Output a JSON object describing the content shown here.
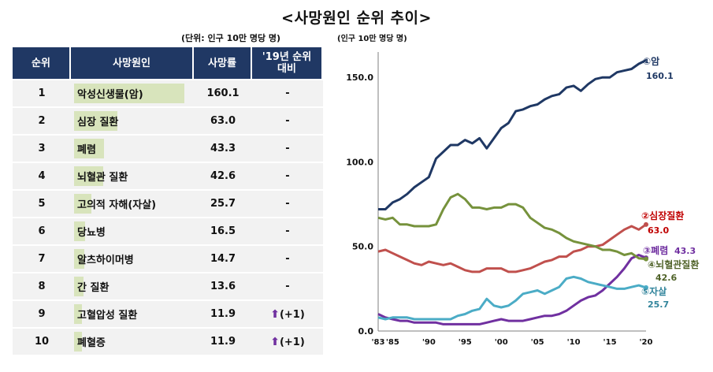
{
  "title": "<사망원인 순위 추이>",
  "table": {
    "unit": "(단위: 인구 10만 명당 명)",
    "headers": [
      "순위",
      "사망원인",
      "사망률",
      "'19년 순위\n대비"
    ],
    "rows": [
      {
        "rank": "1",
        "cause": "악성신생물(암)",
        "rate": "160.1",
        "value": 160.1,
        "change": "-"
      },
      {
        "rank": "2",
        "cause": "심장 질환",
        "rate": "63.0",
        "value": 63.0,
        "change": "-"
      },
      {
        "rank": "3",
        "cause": "폐렴",
        "rate": "43.3",
        "value": 43.3,
        "change": "-"
      },
      {
        "rank": "4",
        "cause": "뇌혈관 질환",
        "rate": "42.6",
        "value": 42.6,
        "change": "-"
      },
      {
        "rank": "5",
        "cause": "고의적 자해(자살)",
        "rate": "25.7",
        "value": 25.7,
        "change": "-"
      },
      {
        "rank": "6",
        "cause": "당뇨병",
        "rate": "16.5",
        "value": 16.5,
        "change": "-"
      },
      {
        "rank": "7",
        "cause": "알츠하이머병",
        "rate": "14.7",
        "value": 14.7,
        "change": "-"
      },
      {
        "rank": "8",
        "cause": "간 질환",
        "rate": "13.6",
        "value": 13.6,
        "change": "-"
      },
      {
        "rank": "9",
        "cause": "고혈압성 질환",
        "rate": "11.9",
        "value": 11.9,
        "change": "(+1)",
        "up": true
      },
      {
        "rank": "10",
        "cause": "폐혈증",
        "rate": "11.9",
        "value": 11.9,
        "change": "(+1)",
        "up": true
      }
    ],
    "bar_color": "#d8e4bc",
    "header_color": "#203864",
    "arrow_color": "#7030a0"
  },
  "chart_data": {
    "type": "line",
    "unit_label": "(인구 10만 명당 명)",
    "x": [
      1983,
      1984,
      1985,
      1986,
      1987,
      1988,
      1989,
      1990,
      1991,
      1992,
      1993,
      1994,
      1995,
      1996,
      1997,
      1998,
      1999,
      2000,
      2001,
      2002,
      2003,
      2004,
      2005,
      2006,
      2007,
      2008,
      2009,
      2010,
      2011,
      2012,
      2013,
      2014,
      2015,
      2016,
      2017,
      2018,
      2019,
      2020
    ],
    "x_ticks": [
      {
        "year": 1983,
        "label": "'83"
      },
      {
        "year": 1985,
        "label": "'85"
      },
      {
        "year": 1990,
        "label": "'90"
      },
      {
        "year": 1995,
        "label": "'95"
      },
      {
        "year": 2000,
        "label": "'00"
      },
      {
        "year": 2005,
        "label": "'05"
      },
      {
        "year": 2010,
        "label": "'10"
      },
      {
        "year": 2015,
        "label": "'15"
      },
      {
        "year": 2020,
        "label": "'20"
      }
    ],
    "y_ticks": [
      0,
      50,
      100,
      150
    ],
    "y_tick_labels": [
      "0.0",
      "50.0",
      "100.0",
      "150.0"
    ],
    "ylim": [
      0,
      165
    ],
    "grid": false,
    "series": [
      {
        "name": "①암",
        "end_label": "160.1",
        "color": "#1f3864",
        "label_color": "#1f3864",
        "values": [
          72,
          72,
          76,
          78,
          81,
          85,
          88,
          91,
          102,
          106,
          110,
          110,
          113,
          111,
          114,
          108,
          114,
          120,
          123,
          130,
          131,
          133,
          134,
          137,
          139,
          140,
          144,
          145,
          142,
          146,
          149,
          150,
          150,
          153,
          154,
          155,
          158,
          160.1
        ]
      },
      {
        "name": "②심장질환",
        "end_label": "63.0",
        "color": "#c0504d",
        "label_color": "#c00000",
        "values": [
          47,
          48,
          46,
          44,
          42,
          40,
          39,
          41,
          40,
          39,
          40,
          38,
          36,
          35,
          35,
          37,
          37,
          37,
          35,
          35,
          36,
          37,
          39,
          41,
          42,
          44,
          44,
          47,
          48,
          50,
          50,
          51,
          54,
          57,
          60,
          62,
          60,
          63.0
        ]
      },
      {
        "name": "③폐렴",
        "end_label": "43.3",
        "color": "#7030a0",
        "label_color": "#7030a0",
        "values": [
          10,
          8,
          7,
          6,
          6,
          5,
          5,
          5,
          5,
          4,
          4,
          4,
          4,
          4,
          4,
          5,
          6,
          7,
          6,
          6,
          6,
          7,
          8,
          9,
          9,
          10,
          12,
          15,
          18,
          20,
          21,
          24,
          28,
          32,
          37,
          43,
          45,
          43.3
        ]
      },
      {
        "name": "④뇌혈관질환",
        "end_label": "42.6",
        "color": "#76923c",
        "label_color": "#4f6228",
        "values": [
          67,
          66,
          67,
          63,
          63,
          62,
          62,
          62,
          63,
          72,
          79,
          81,
          78,
          73,
          73,
          72,
          73,
          73,
          75,
          75,
          73,
          67,
          64,
          61,
          60,
          58,
          55,
          53,
          52,
          51,
          50,
          48,
          48,
          47,
          45,
          46,
          43,
          42.6
        ]
      },
      {
        "name": "⑤자살",
        "end_label": "25.7",
        "color": "#4bacc6",
        "label_color": "#31849b",
        "values": [
          8,
          7,
          8,
          8,
          8,
          7,
          7,
          7,
          7,
          7,
          7,
          9,
          10,
          12,
          13,
          19,
          15,
          14,
          15,
          18,
          22,
          23,
          24,
          22,
          24,
          26,
          31,
          32,
          31,
          29,
          28,
          27,
          26,
          25,
          25,
          26,
          27,
          25.7
        ]
      }
    ]
  }
}
